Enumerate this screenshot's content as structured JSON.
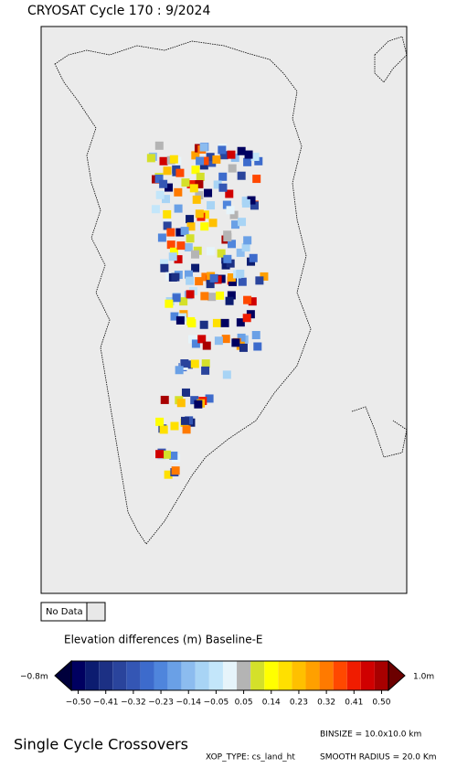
{
  "header": {
    "title": "CRYOSAT Cycle 170 : 9/2024"
  },
  "legend": {
    "no_data": "No Data",
    "no_data_color": "#e8e8e8"
  },
  "colorbar": {
    "title": "Elevation differences (m) Baseline-E",
    "min_label": "−0.8m",
    "max_label": "1.0m",
    "tick_labels": [
      "−0.50",
      "−0.41",
      "−0.32",
      "−0.23",
      "−0.14",
      "−0.05",
      "0.05",
      "0.14",
      "0.23",
      "0.32",
      "0.41",
      "0.50"
    ],
    "colors": [
      "#000060",
      "#0c1c70",
      "#1c3084",
      "#2a449c",
      "#3456b4",
      "#3d6bcc",
      "#4f85dc",
      "#6aa0e6",
      "#8cbcef",
      "#a8d4f5",
      "#c3e6fa",
      "#e6f4fa",
      "#b4b4b4",
      "#d4e02a",
      "#ffff00",
      "#ffe000",
      "#ffc000",
      "#ffa000",
      "#ff7a00",
      "#ff4800",
      "#f01c00",
      "#d00000",
      "#a80000"
    ],
    "low_color": "#00003c",
    "high_color": "#6c0000"
  },
  "footer": {
    "heading": "Single Cycle Crossovers",
    "binsize": "BINSIZE = 10.0x10.0 km",
    "xop_type": "XOP_TYPE: cs_land_ht",
    "smooth_radius": "SMOOTH RADIUS =  20.0 Km"
  }
}
